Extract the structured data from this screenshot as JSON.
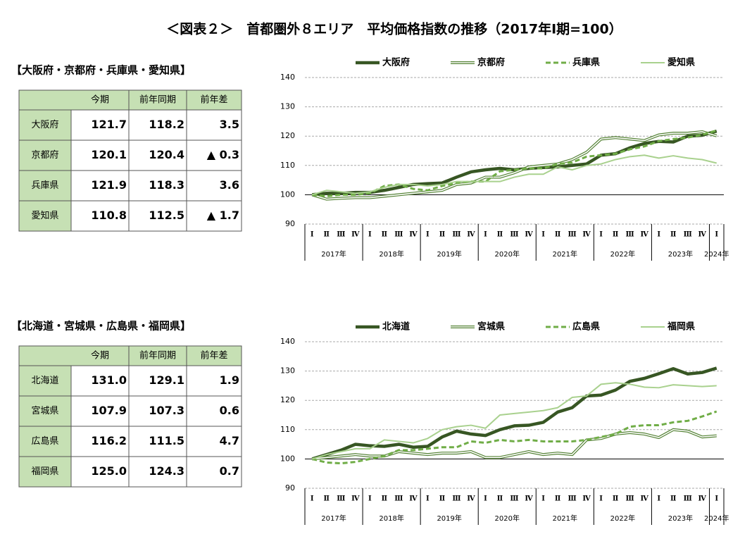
{
  "title": "＜図表２＞　首都圏外８エリア　平均価格指数の推移（2017年Ⅰ期=100）",
  "tables": [
    {
      "heading": "【大阪府・京都府・兵庫県・愛知県】",
      "columns": [
        "今期",
        "前年同期",
        "前年差"
      ],
      "rows": [
        [
          "大阪府",
          "121.7",
          "118.2",
          "3.5"
        ],
        [
          "京都府",
          "120.1",
          "120.4",
          "▲ 0.3"
        ],
        [
          "兵庫県",
          "121.9",
          "118.3",
          "3.6"
        ],
        [
          "愛知県",
          "110.8",
          "112.5",
          "▲ 1.7"
        ]
      ]
    },
    {
      "heading": "【北海道・宮城県・広島県・福岡県】",
      "columns": [
        "今期",
        "前年同期",
        "前年差"
      ],
      "rows": [
        [
          "北海道",
          "131.0",
          "129.1",
          "1.9"
        ],
        [
          "宮城県",
          "107.9",
          "107.3",
          "0.6"
        ],
        [
          "広島県",
          "116.2",
          "111.5",
          "4.7"
        ],
        [
          "福岡県",
          "125.0",
          "124.3",
          "0.7"
        ]
      ]
    }
  ],
  "chart_data": [
    {
      "type": "line",
      "grid": true,
      "ylim": [
        90,
        140
      ],
      "yticks": [
        90,
        100,
        110,
        120,
        130,
        140
      ],
      "categories": [
        "Ⅰ",
        "Ⅱ",
        "Ⅲ",
        "Ⅳ",
        "Ⅰ",
        "Ⅱ",
        "Ⅲ",
        "Ⅳ",
        "Ⅰ",
        "Ⅱ",
        "Ⅲ",
        "Ⅳ",
        "Ⅰ",
        "Ⅱ",
        "Ⅲ",
        "Ⅳ",
        "Ⅰ",
        "Ⅱ",
        "Ⅲ",
        "Ⅳ",
        "Ⅰ",
        "Ⅱ",
        "Ⅲ",
        "Ⅳ",
        "Ⅰ",
        "Ⅱ",
        "Ⅲ",
        "Ⅳ",
        "Ⅰ"
      ],
      "years": [
        "2017年",
        "2018年",
        "2019年",
        "2020年",
        "2021年",
        "2022年",
        "2023年",
        "2024年"
      ],
      "series": [
        {
          "name": "大阪府",
          "color": "#375623",
          "line_style": "thick",
          "values": [
            100,
            100.5,
            100.5,
            100.8,
            100.8,
            101.5,
            102.5,
            103.5,
            103.8,
            104,
            106,
            107.8,
            108.5,
            109,
            108.5,
            109,
            109.3,
            109.5,
            110,
            110.5,
            113.5,
            114,
            116,
            117.5,
            118.2,
            118,
            120,
            120.3,
            121.7
          ]
        },
        {
          "name": "京都府",
          "color": "#548235",
          "line_style": "double",
          "values": [
            100,
            98.5,
            98.8,
            99,
            99,
            99.5,
            100,
            100.5,
            101,
            101.5,
            103.5,
            104,
            106,
            106,
            107.5,
            109.5,
            110,
            110.5,
            112,
            114.5,
            119,
            119.5,
            119,
            118.5,
            120.4,
            121,
            121,
            121.5,
            120.1
          ]
        },
        {
          "name": "兵庫県",
          "color": "#70ad47",
          "line_style": "dashed",
          "values": [
            100,
            99.5,
            100,
            100,
            100.5,
            103,
            103.5,
            102,
            101.5,
            103,
            104,
            104.5,
            104.5,
            108,
            108.5,
            109,
            109,
            110.5,
            111,
            113,
            113.5,
            114,
            115.5,
            116.5,
            118.3,
            119,
            119.5,
            120.5,
            121.9
          ]
        },
        {
          "name": "愛知県",
          "color": "#a9d18e",
          "line_style": "thin",
          "values": [
            100,
            101.5,
            101,
            100.5,
            101,
            102.5,
            103.5,
            103.5,
            103,
            103.5,
            104.5,
            104.5,
            104.5,
            104.5,
            106,
            107,
            107,
            109.5,
            108.5,
            110,
            110.5,
            112,
            113,
            113.5,
            112.5,
            113.3,
            112.5,
            112,
            110.8
          ]
        }
      ]
    },
    {
      "type": "line",
      "grid": true,
      "ylim": [
        90,
        140
      ],
      "yticks": [
        90,
        100,
        110,
        120,
        130,
        140
      ],
      "categories": [
        "Ⅰ",
        "Ⅱ",
        "Ⅲ",
        "Ⅳ",
        "Ⅰ",
        "Ⅱ",
        "Ⅲ",
        "Ⅳ",
        "Ⅰ",
        "Ⅱ",
        "Ⅲ",
        "Ⅳ",
        "Ⅰ",
        "Ⅱ",
        "Ⅲ",
        "Ⅳ",
        "Ⅰ",
        "Ⅱ",
        "Ⅲ",
        "Ⅳ",
        "Ⅰ",
        "Ⅱ",
        "Ⅲ",
        "Ⅳ",
        "Ⅰ",
        "Ⅱ",
        "Ⅲ",
        "Ⅳ",
        "Ⅰ"
      ],
      "years": [
        "2017年",
        "2018年",
        "2019年",
        "2020年",
        "2021年",
        "2022年",
        "2023年",
        "2024年"
      ],
      "series": [
        {
          "name": "北海道",
          "color": "#375623",
          "line_style": "thick",
          "values": [
            100,
            101.5,
            103,
            105,
            104.5,
            104.3,
            105,
            104,
            104.3,
            107.5,
            109.5,
            108.5,
            108,
            110,
            111.3,
            111.5,
            112.5,
            116,
            117.5,
            121.5,
            121.8,
            123.5,
            126.5,
            127.5,
            129.1,
            130.8,
            129,
            129.5,
            131.0
          ]
        },
        {
          "name": "宮城県",
          "color": "#548235",
          "line_style": "double",
          "values": [
            100,
            100.5,
            101,
            101.5,
            101,
            101,
            102.5,
            102,
            101.5,
            102,
            102,
            102.5,
            100.5,
            100.5,
            101.5,
            102.5,
            101.5,
            102,
            101.5,
            106.5,
            107,
            108.5,
            109,
            108.5,
            107.3,
            110,
            109.5,
            107.5,
            107.9
          ]
        },
        {
          "name": "広島県",
          "color": "#70ad47",
          "line_style": "dashed",
          "values": [
            100,
            98.8,
            98.5,
            99,
            100,
            101,
            103,
            103,
            103.5,
            104,
            104,
            106,
            105.5,
            106.5,
            106,
            106.5,
            106,
            106,
            106,
            106.5,
            107.5,
            108.5,
            111,
            111.5,
            111.5,
            112.5,
            113,
            114.5,
            116.2
          ]
        },
        {
          "name": "福岡県",
          "color": "#a9d18e",
          "line_style": "thin",
          "values": [
            100,
            101.5,
            102.5,
            103.5,
            103.5,
            106.5,
            106,
            105.5,
            107,
            110,
            111,
            111.5,
            110.5,
            115,
            115.5,
            116,
            116.5,
            117.5,
            121,
            121.5,
            125.5,
            126,
            125.5,
            124.5,
            124.3,
            125.3,
            125,
            124.7,
            125.0
          ]
        }
      ]
    }
  ]
}
